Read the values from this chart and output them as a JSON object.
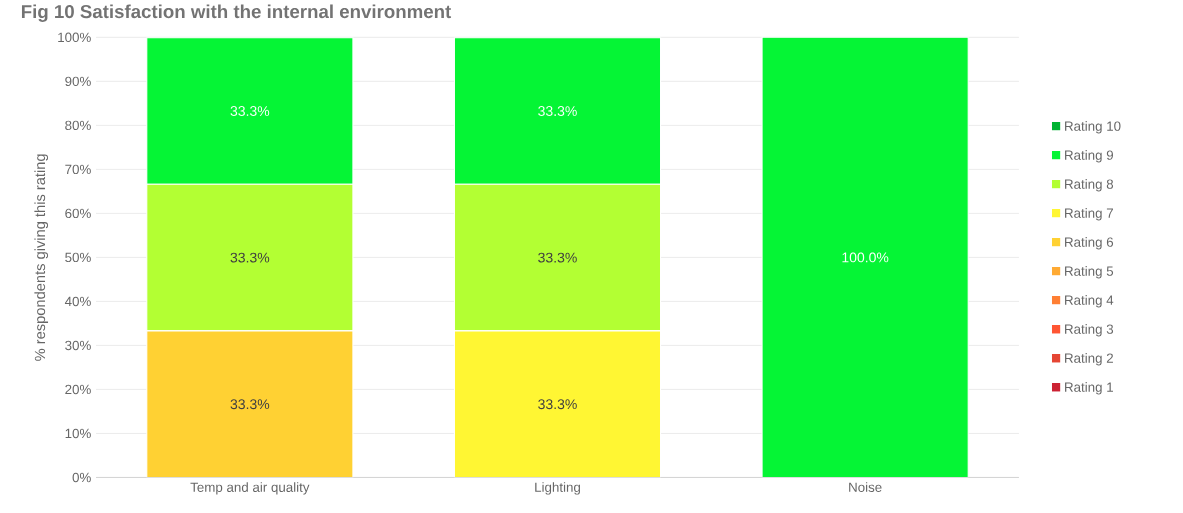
{
  "chart_data": {
    "type": "bar",
    "stacked": true,
    "title": "Fig 10 Satisfaction with the internal environment",
    "ylabel": "% respondents giving this rating",
    "categories": [
      "Temp and air quality",
      "Lighting",
      "Noise"
    ],
    "series": [
      {
        "name": "Rating 1",
        "color": "#cc2233",
        "values": [
          0,
          0,
          0
        ],
        "value_labels": [
          null,
          null,
          null
        ]
      },
      {
        "name": "Rating 2",
        "color": "#e54533",
        "values": [
          0,
          0,
          0
        ],
        "value_labels": [
          null,
          null,
          null
        ]
      },
      {
        "name": "Rating 3",
        "color": "#ff5533",
        "values": [
          0,
          0,
          0
        ],
        "value_labels": [
          null,
          null,
          null
        ]
      },
      {
        "name": "Rating 4",
        "color": "#ff7f33",
        "values": [
          0,
          0,
          0
        ],
        "value_labels": [
          null,
          null,
          null
        ]
      },
      {
        "name": "Rating 5",
        "color": "#ffaa33",
        "values": [
          0,
          0,
          0
        ],
        "value_labels": [
          null,
          null,
          null
        ]
      },
      {
        "name": "Rating 6",
        "color": "#ffd133",
        "values": [
          33.3,
          0,
          0
        ],
        "value_labels": [
          "33.3%",
          null,
          null
        ]
      },
      {
        "name": "Rating 7",
        "color": "#fff633",
        "values": [
          0,
          33.3,
          0
        ],
        "value_labels": [
          null,
          "33.3%",
          null
        ]
      },
      {
        "name": "Rating 8",
        "color": "#b3ff33",
        "values": [
          33.3,
          33.3,
          0
        ],
        "value_labels": [
          "33.3%",
          "33.3%",
          null
        ]
      },
      {
        "name": "Rating 9",
        "color": "#05f535",
        "values": [
          33.3,
          33.3,
          100
        ],
        "value_labels": [
          "33.3%",
          "33.3%",
          "100.0%"
        ]
      },
      {
        "name": "Rating 10",
        "color": "#00b332",
        "values": [
          0,
          0,
          0
        ],
        "value_labels": [
          null,
          null,
          null
        ]
      }
    ],
    "ylim": [
      0,
      100
    ],
    "yticks": [
      {
        "value": 0,
        "label": "0%"
      },
      {
        "value": 10,
        "label": "10%"
      },
      {
        "value": 20,
        "label": "20%"
      },
      {
        "value": 30,
        "label": "30%"
      },
      {
        "value": 40,
        "label": "40%"
      },
      {
        "value": 50,
        "label": "50%"
      },
      {
        "value": 60,
        "label": "60%"
      },
      {
        "value": 70,
        "label": "70%"
      },
      {
        "value": 80,
        "label": "80%"
      },
      {
        "value": 90,
        "label": "90%"
      },
      {
        "value": 100,
        "label": "100%"
      }
    ],
    "grid": "y",
    "legend": "right"
  }
}
